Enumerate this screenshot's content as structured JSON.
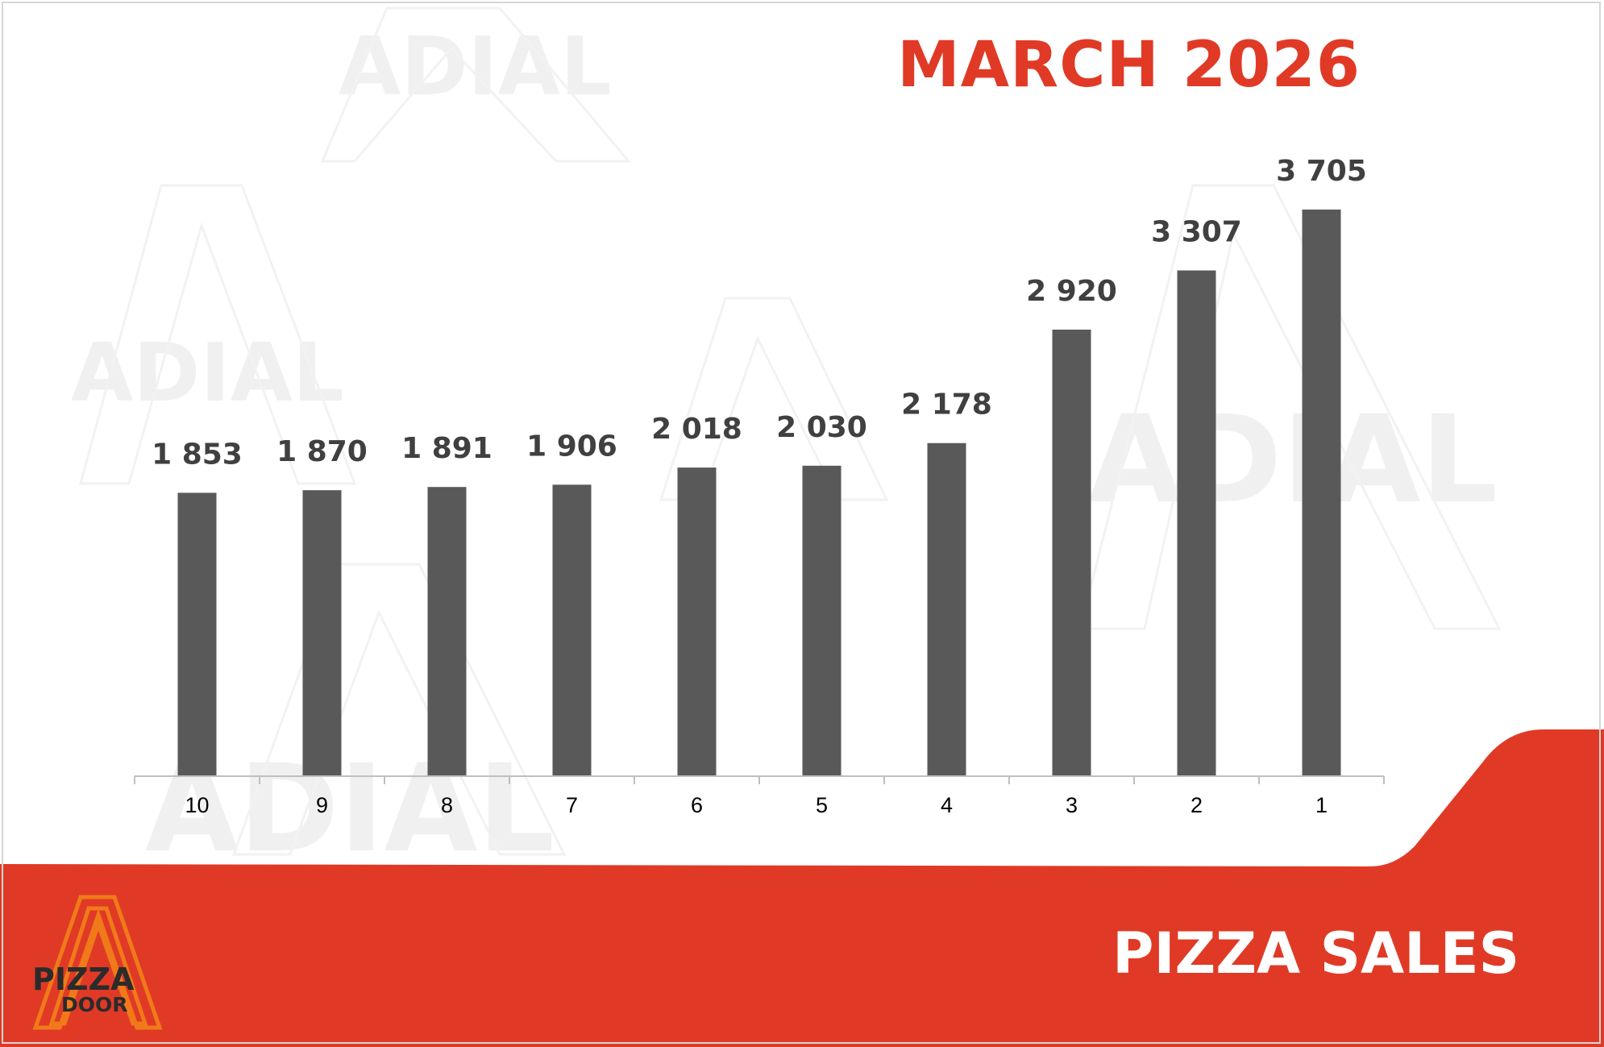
{
  "header": {
    "title": "MARCH 2026"
  },
  "footer": {
    "title": "PIZZA SALES"
  },
  "branding": {
    "logo_line1": "PIZZA",
    "logo_line2": "DOOR",
    "watermark_text": "ADIAL"
  },
  "colors": {
    "accent_red": "#E03A26",
    "bar_gray": "#595959",
    "value_label": "#404040",
    "logo_orange": "#F07A1A",
    "logo_text": "#2b2b2b"
  },
  "chart_data": {
    "type": "bar",
    "title": "MARCH 2026",
    "categories": [
      "10",
      "9",
      "8",
      "7",
      "6",
      "5",
      "4",
      "3",
      "2",
      "1"
    ],
    "values": [
      1853,
      1870,
      1891,
      1906,
      2018,
      2030,
      2178,
      2920,
      3307,
      3705
    ],
    "value_labels": [
      "1 853",
      "1 870",
      "1 891",
      "1 906",
      "2 018",
      "2 030",
      "2 178",
      "2 920",
      "3 307",
      "3 705"
    ],
    "xlabel": "",
    "ylabel": "",
    "ylim": [
      0,
      3705
    ],
    "grid": false,
    "legend": "none"
  }
}
